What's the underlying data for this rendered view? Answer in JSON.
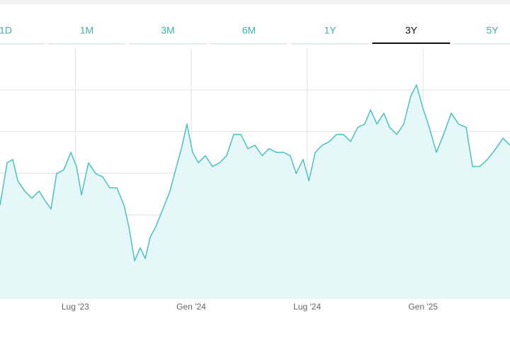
{
  "tabs": {
    "items": [
      "1D",
      "1M",
      "3M",
      "6M",
      "1Y",
      "3Y",
      "5Y"
    ],
    "active": 5
  },
  "chart_data": {
    "type": "area",
    "color": "#4cc2c0",
    "fill": "#e5f7f8",
    "grid": true,
    "x": [
      2.1,
      2.47,
      2.76,
      3.02,
      3.38,
      3.75,
      4.12,
      4.48,
      4.74,
      5.03,
      5.4,
      5.77,
      6.06,
      6.32,
      6.68,
      7.05,
      7.42,
      7.78,
      8.15,
      8.52,
      8.77,
      9.07,
      9.36,
      9.62,
      9.87,
      10.17,
      10.53,
      10.9,
      11.19,
      11.49,
      11.78,
      12.07,
      12.37,
      12.73,
      13.1,
      13.47,
      13.83,
      14.2,
      14.57,
      14.93,
      15.3,
      15.67,
      16.03,
      16.4,
      16.77,
      17.13,
      17.43,
      17.79,
      18.09,
      18.42,
      18.78,
      19.15,
      19.52,
      19.88,
      20.25,
      20.62,
      20.98,
      21.28,
      21.61,
      21.97,
      22.27,
      22.64,
      23.0,
      23.37,
      23.66,
      23.96,
      24.32,
      24.69,
      25.06,
      25.46,
      25.83,
      26.23,
      26.56,
      26.93,
      27.33,
      27.77,
      28.14,
      28.5
    ],
    "values": [
      2.23,
      3.25,
      3.33,
      2.82,
      2.57,
      2.4,
      2.57,
      2.31,
      2.14,
      2.99,
      3.08,
      3.5,
      3.16,
      2.48,
      3.25,
      2.99,
      2.91,
      2.65,
      2.65,
      2.23,
      1.72,
      0.9,
      1.21,
      0.95,
      1.46,
      1.72,
      2.14,
      2.57,
      3.08,
      3.59,
      4.18,
      3.5,
      3.25,
      3.42,
      3.16,
      3.25,
      3.42,
      3.93,
      3.93,
      3.59,
      3.67,
      3.42,
      3.59,
      3.5,
      3.5,
      3.42,
      2.99,
      3.33,
      2.82,
      3.5,
      3.67,
      3.76,
      3.93,
      3.93,
      3.76,
      4.1,
      4.18,
      4.52,
      4.18,
      4.44,
      4.1,
      3.93,
      4.18,
      4.86,
      5.12,
      4.61,
      4.1,
      3.5,
      3.93,
      4.44,
      4.18,
      4.1,
      3.16,
      3.16,
      3.33,
      3.59,
      3.84,
      3.67
    ],
    "xlim": [
      2.1,
      28.5
    ],
    "xticks": [
      {
        "value": 6,
        "label": "Lug '23"
      },
      {
        "value": 12,
        "label": "Gen '24"
      },
      {
        "value": 18,
        "label": "Lug '24"
      },
      {
        "value": 24,
        "label": "Gen '25"
      }
    ],
    "ylim": [
      0,
      6
    ],
    "yticks": [
      0,
      1,
      2,
      3,
      4,
      5
    ]
  }
}
